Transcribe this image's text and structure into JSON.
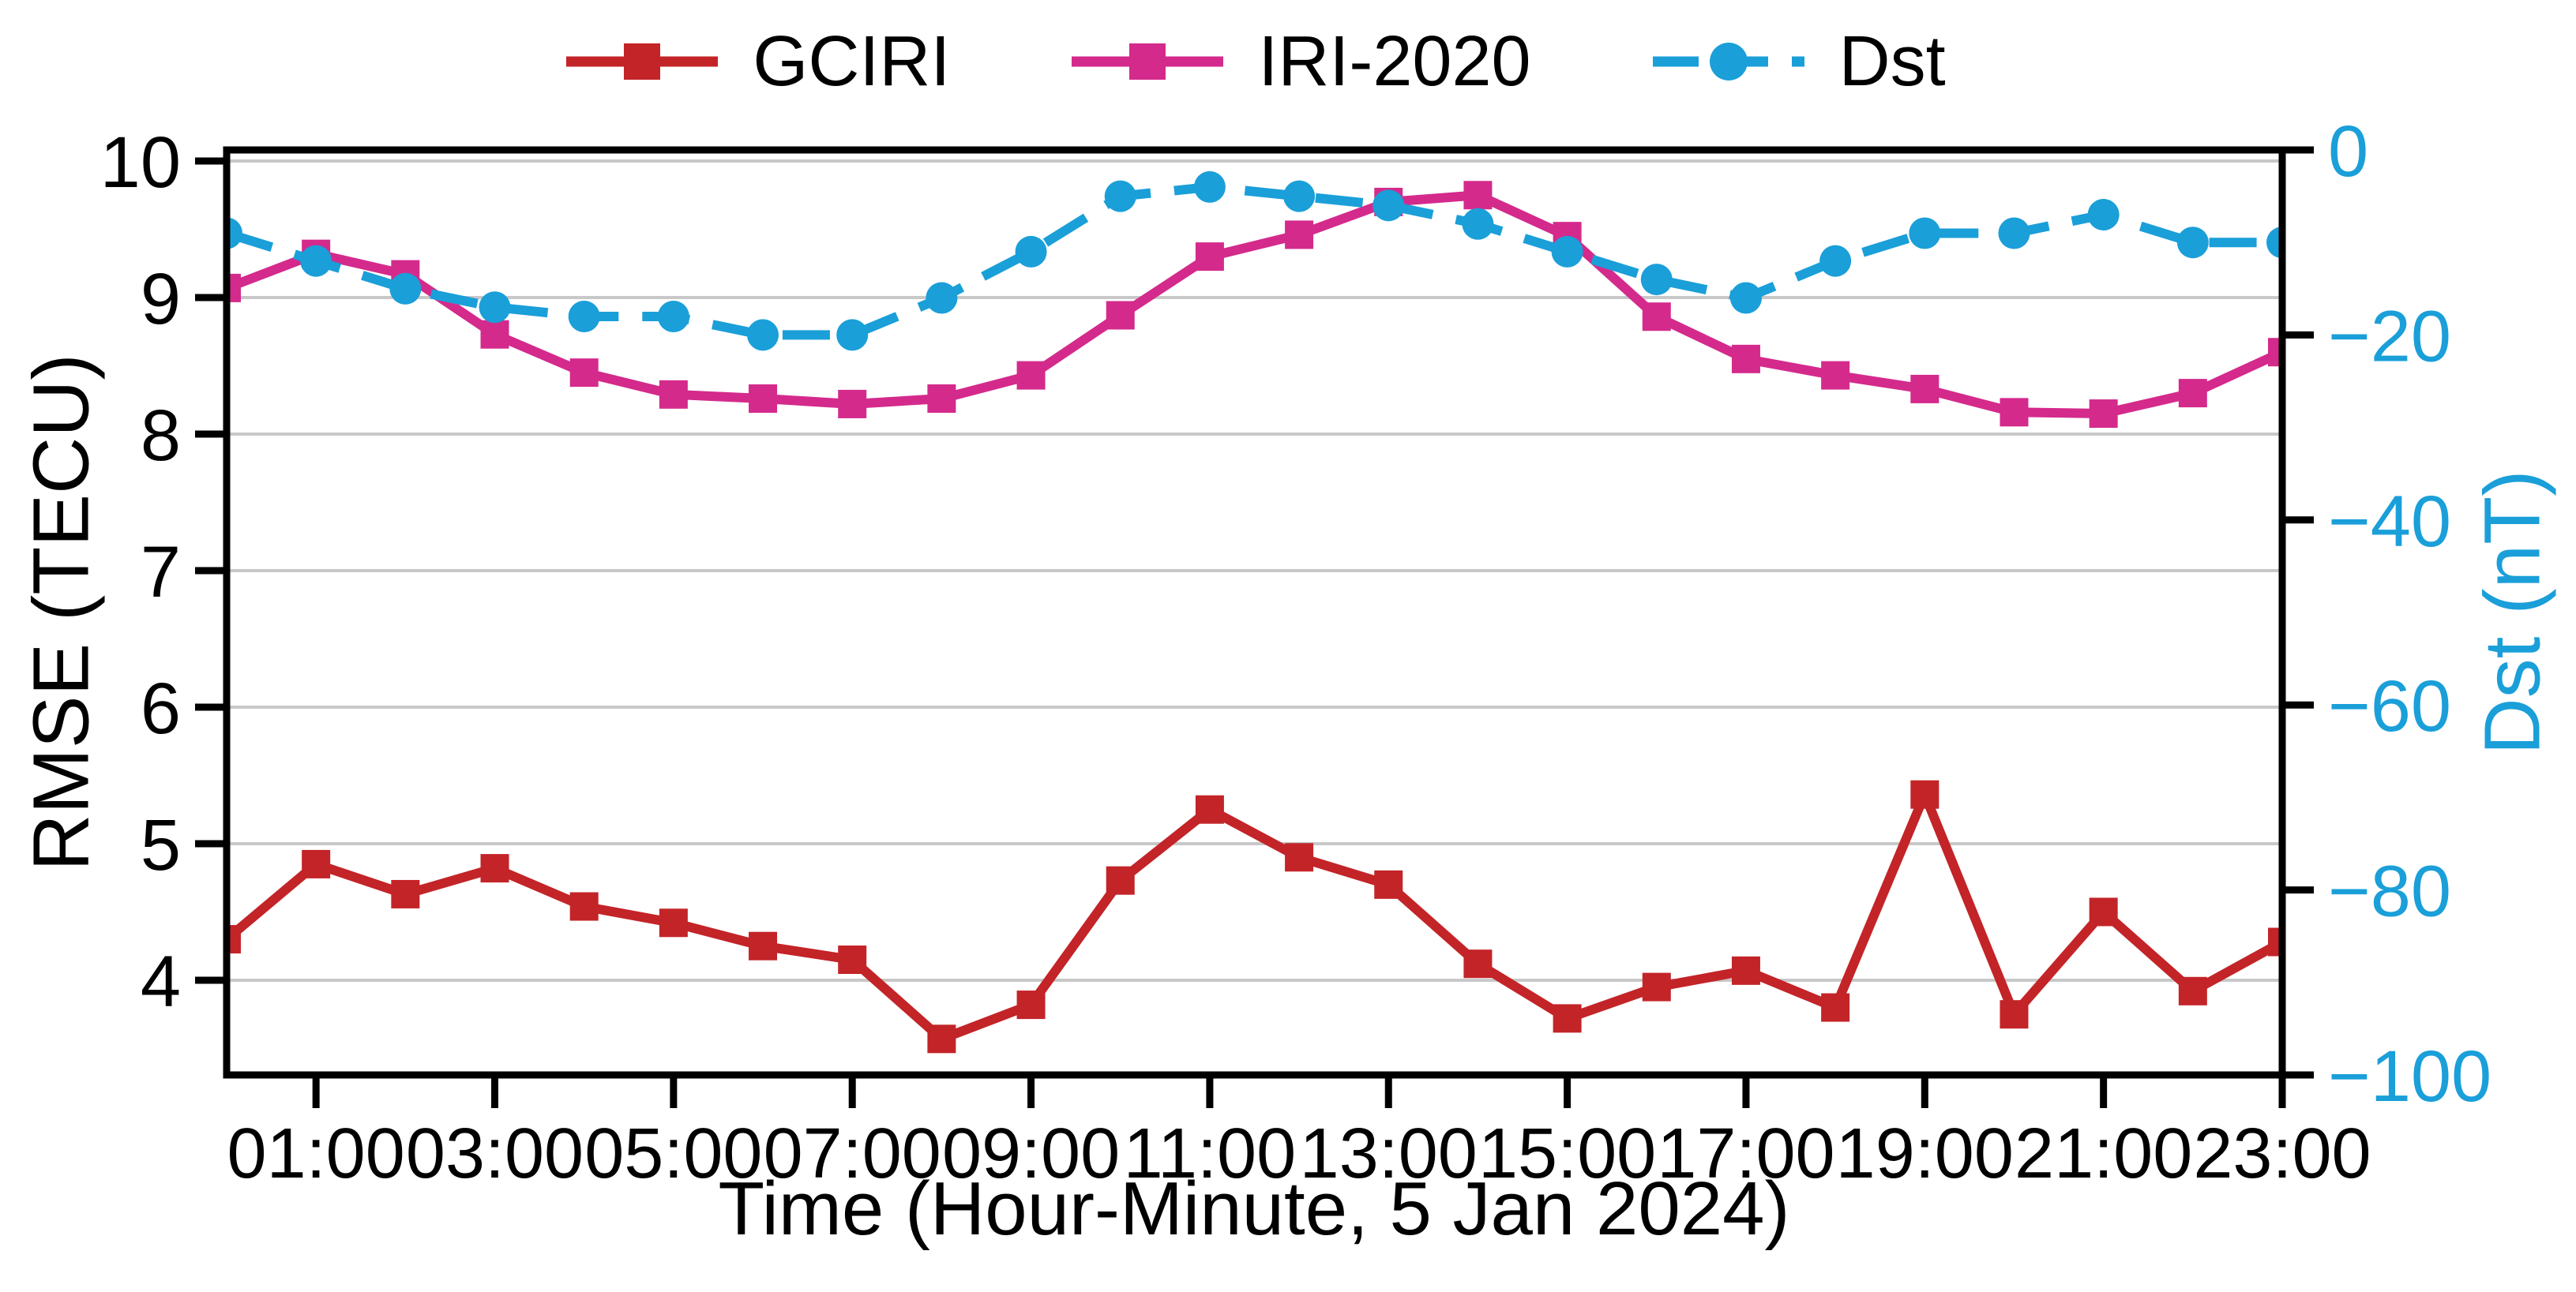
{
  "figure": {
    "background": "#ffffff"
  },
  "legend": {
    "items": [
      {
        "label": "GCIRI",
        "color": "#c32428",
        "marker": "square",
        "line": "solid"
      },
      {
        "label": "IRI-2020",
        "color": "#d42a8c",
        "marker": "square",
        "line": "solid"
      },
      {
        "label": "Dst",
        "color": "#1a9fd9",
        "marker": "circle",
        "line": "dashed"
      }
    ]
  },
  "axes": {
    "x": {
      "label": "Time (Hour-Minute, 5 Jan 2024)",
      "tick_hours": [
        1,
        3,
        5,
        7,
        9,
        11,
        13,
        15,
        17,
        19,
        21,
        23
      ],
      "tick_labels": [
        "01:00",
        "03:00",
        "05:00",
        "07:00",
        "09:00",
        "11:00",
        "13:00",
        "15:00",
        "17:00",
        "19:00",
        "21:00",
        "23:00"
      ]
    },
    "left": {
      "label": "RMSE (TECU)",
      "ticks": [
        4,
        5,
        6,
        7,
        8,
        9,
        10
      ],
      "color": "#000000"
    },
    "right": {
      "label": "Dst (nT)",
      "ticks": [
        0,
        -20,
        -40,
        -60,
        -80,
        -100
      ],
      "color": "#1a9fd9"
    }
  },
  "chart_data": {
    "type": "line",
    "title": "",
    "xlabel": "Time (Hour-Minute, 5 Jan 2024)",
    "ylabel_left": "RMSE (TECU)",
    "ylabel_right": "Dst (nT)",
    "x": [
      "00:00",
      "01:00",
      "02:00",
      "03:00",
      "04:00",
      "05:00",
      "06:00",
      "07:00",
      "08:00",
      "09:00",
      "10:00",
      "11:00",
      "12:00",
      "13:00",
      "14:00",
      "15:00",
      "16:00",
      "17:00",
      "18:00",
      "19:00",
      "20:00",
      "21:00",
      "22:00",
      "23:00"
    ],
    "series": [
      {
        "name": "GCIRI",
        "axis": "left",
        "color": "#c32428",
        "marker": "square",
        "linestyle": "solid",
        "values": [
          4.3,
          4.85,
          4.63,
          4.82,
          4.54,
          4.42,
          4.25,
          4.15,
          3.57,
          3.82,
          4.73,
          5.25,
          4.9,
          4.7,
          4.12,
          3.72,
          3.95,
          4.07,
          3.8,
          5.36,
          3.75,
          4.5,
          3.92,
          4.28
        ]
      },
      {
        "name": "IRI-2020",
        "axis": "left",
        "color": "#d42a8c",
        "marker": "square",
        "linestyle": "solid",
        "values": [
          9.07,
          9.32,
          9.17,
          8.73,
          8.45,
          8.29,
          8.26,
          8.22,
          8.26,
          8.43,
          8.87,
          9.3,
          9.46,
          9.7,
          9.75,
          9.45,
          8.86,
          8.55,
          8.43,
          8.33,
          8.16,
          8.15,
          8.3,
          8.6
        ]
      },
      {
        "name": "Dst",
        "axis": "right",
        "color": "#1a9fd9",
        "marker": "circle",
        "linestyle": "dashed",
        "values": [
          -9,
          -12,
          -15,
          -17,
          -18,
          -18,
          -20,
          -20,
          -16,
          -11,
          -5,
          -4,
          -5,
          -6,
          -8,
          -11,
          -14,
          -16,
          -12,
          -9,
          -9,
          -7,
          -10,
          -10
        ]
      }
    ],
    "left_ylim": [
      3.306,
      10.081
    ],
    "right_ylim": [
      -100,
      0
    ],
    "grid": "horizontal",
    "grid_color": "#c8c8c8",
    "legend_position": "top-center"
  }
}
